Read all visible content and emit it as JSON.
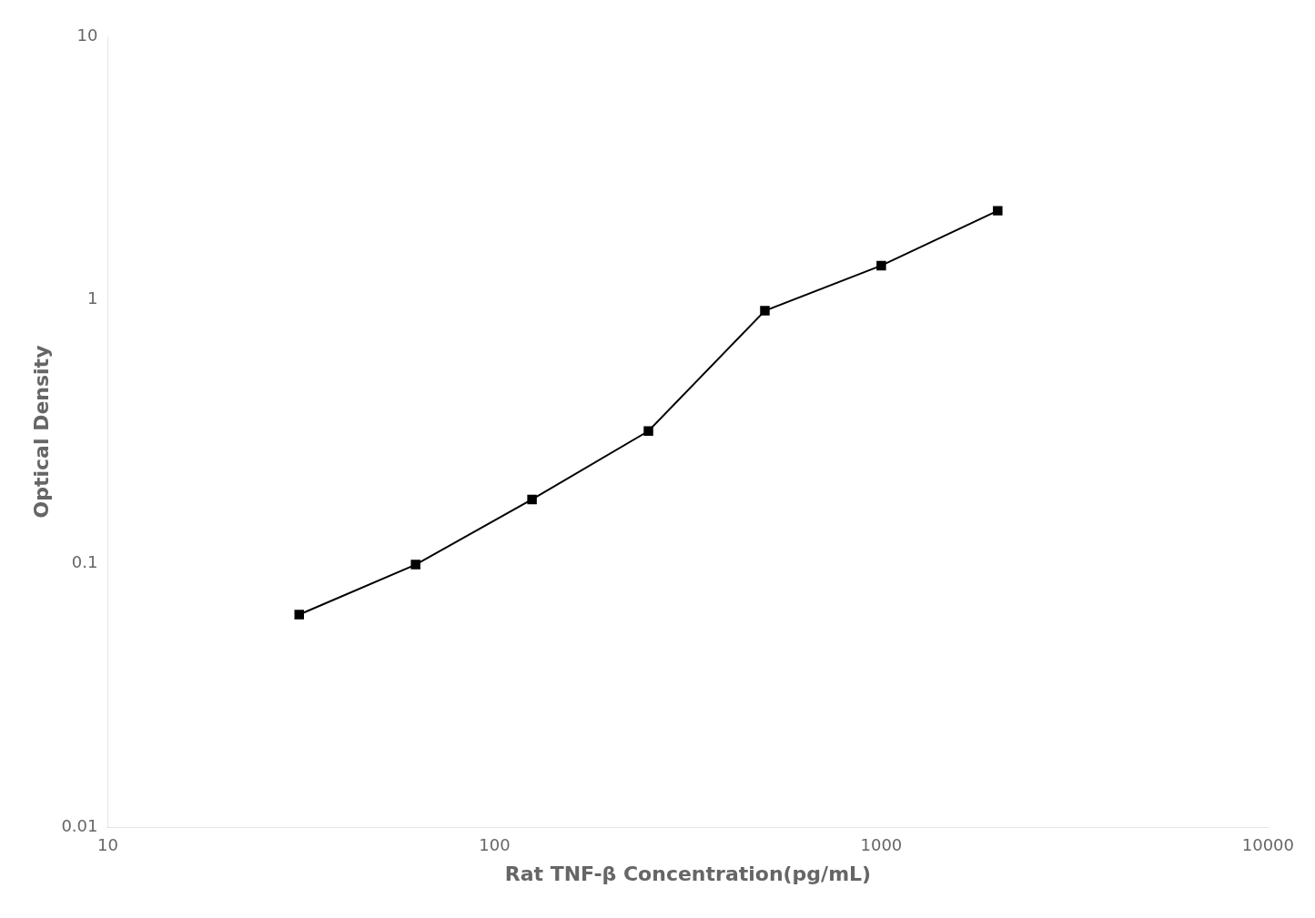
{
  "chart_data": {
    "type": "line",
    "x": [
      31.25,
      62.5,
      125,
      250,
      500,
      1000,
      2000
    ],
    "values": [
      0.064,
      0.099,
      0.175,
      0.318,
      0.91,
      1.35,
      2.18
    ],
    "xlabel": "Rat TNF-β Concentration(pg/mL)",
    "ylabel": "Optical Density",
    "xlim": [
      10,
      10000
    ],
    "ylim": [
      0.01,
      10
    ],
    "xticks": [
      10,
      100,
      1000,
      10000
    ],
    "yticks": [
      0.01,
      0.1,
      1,
      10
    ],
    "log": true,
    "color": "#000000",
    "marker": "square",
    "grid": false
  }
}
